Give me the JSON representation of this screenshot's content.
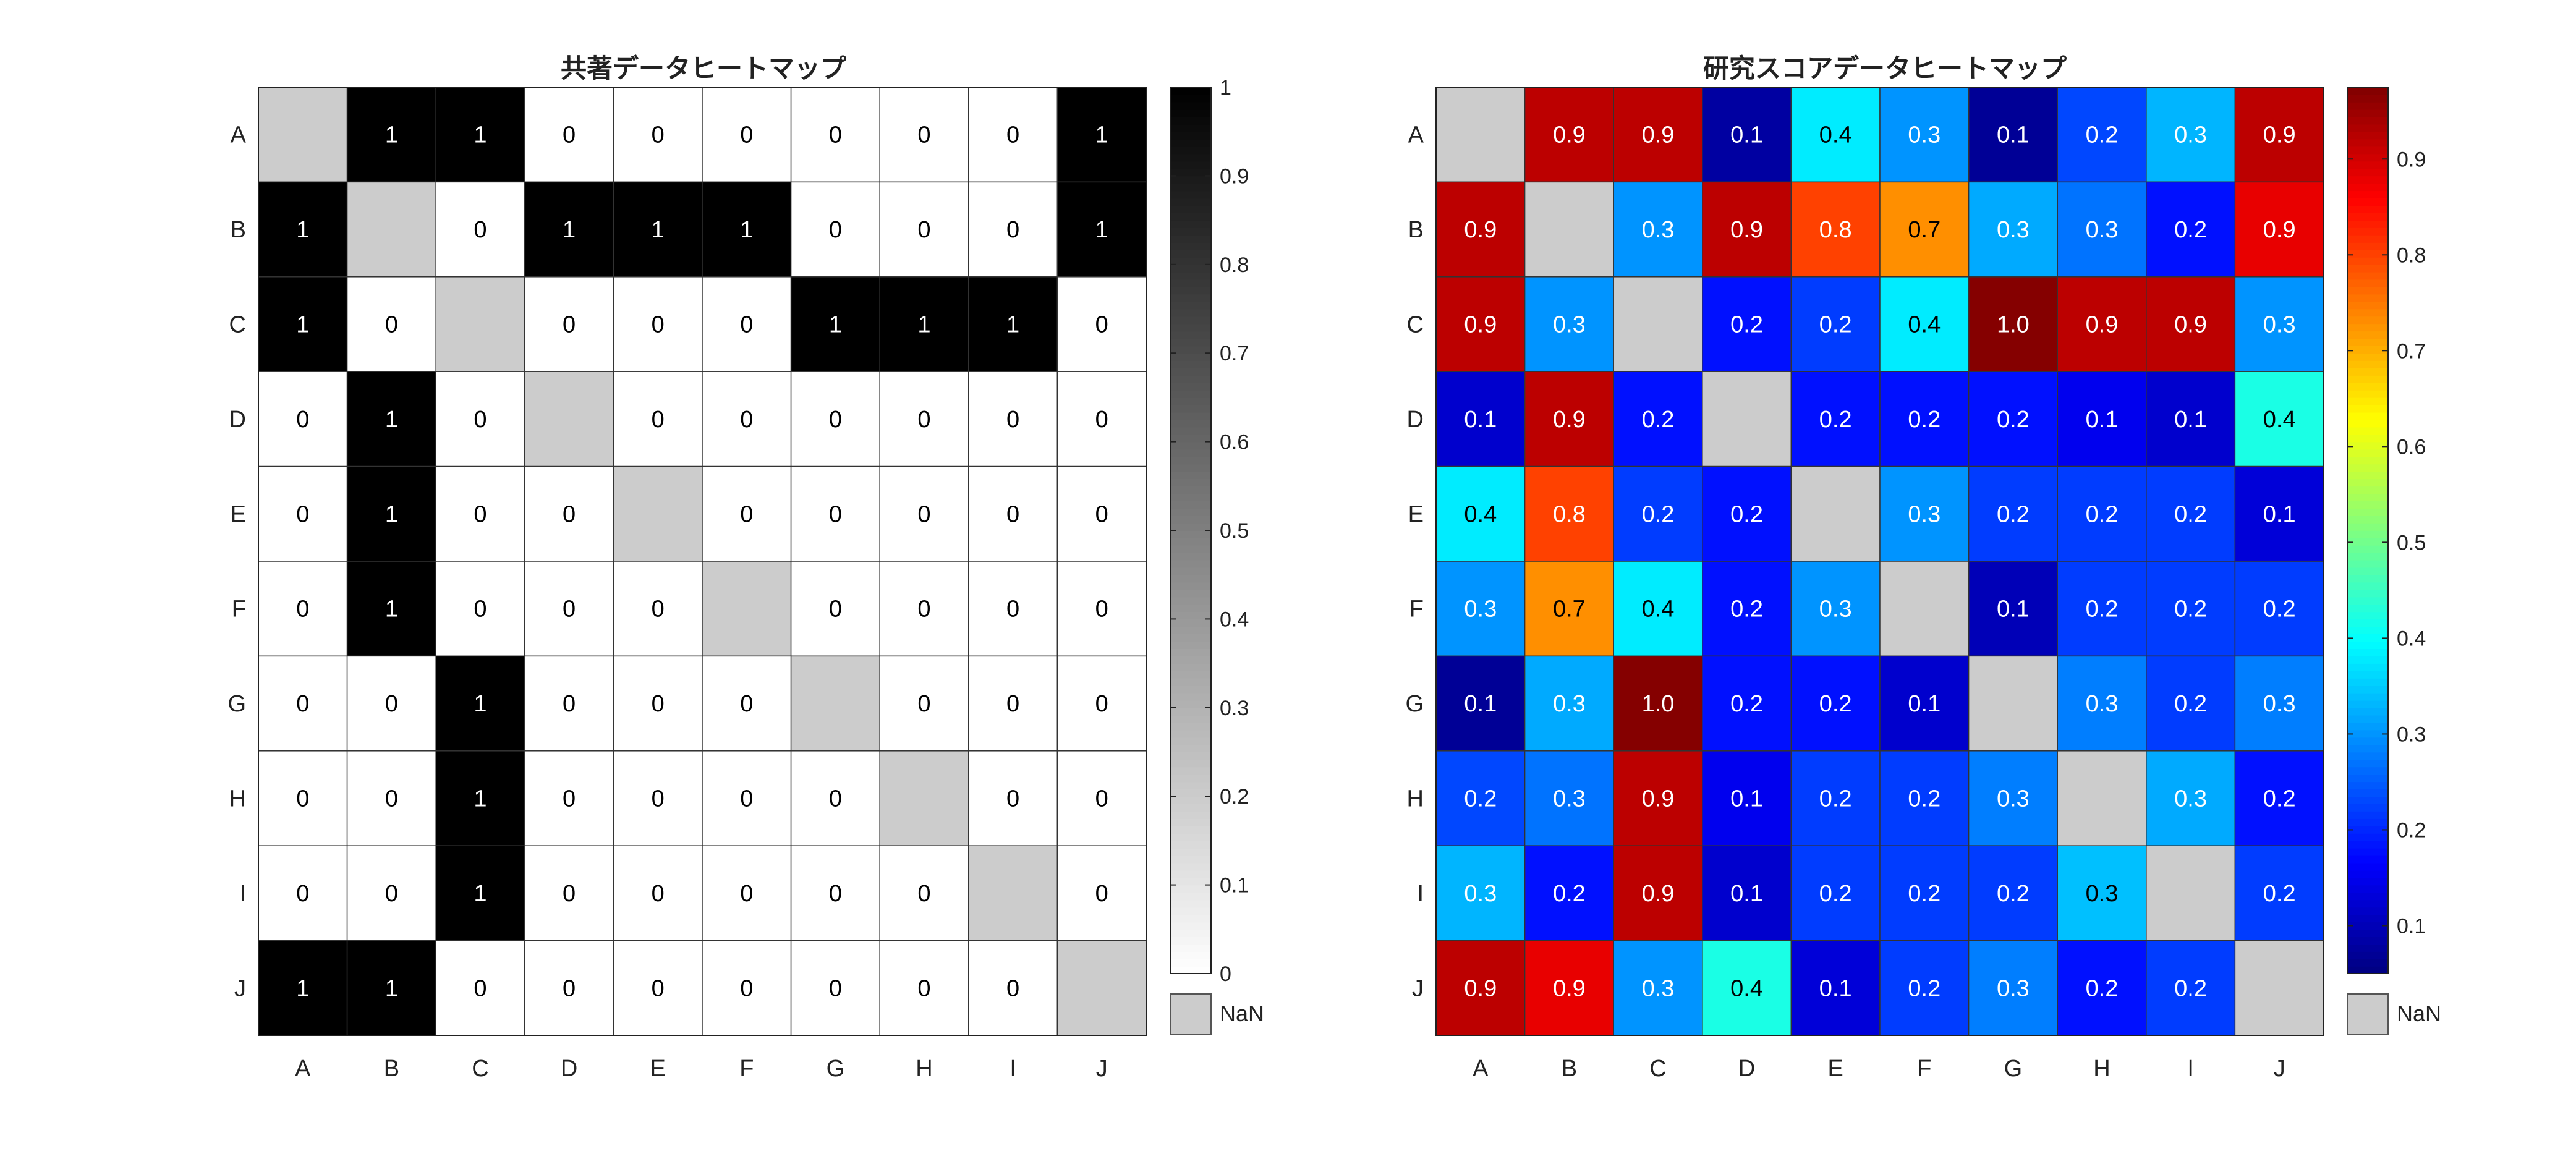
{
  "chart_data": [
    {
      "type": "heatmap",
      "title": "共著データヒートマップ",
      "xlabel": "",
      "ylabel": "",
      "x_categories": [
        "A",
        "B",
        "C",
        "D",
        "E",
        "F",
        "G",
        "H",
        "I",
        "J"
      ],
      "y_categories": [
        "A",
        "B",
        "C",
        "D",
        "E",
        "F",
        "G",
        "H",
        "I",
        "J"
      ],
      "values": [
        [
          null,
          1,
          1,
          0,
          0,
          0,
          0,
          0,
          0,
          1
        ],
        [
          1,
          null,
          0,
          1,
          1,
          1,
          0,
          0,
          0,
          1
        ],
        [
          1,
          0,
          null,
          0,
          0,
          0,
          1,
          1,
          1,
          0
        ],
        [
          0,
          1,
          0,
          null,
          0,
          0,
          0,
          0,
          0,
          0
        ],
        [
          0,
          1,
          0,
          0,
          null,
          0,
          0,
          0,
          0,
          0
        ],
        [
          0,
          1,
          0,
          0,
          0,
          null,
          0,
          0,
          0,
          0
        ],
        [
          0,
          0,
          1,
          0,
          0,
          0,
          null,
          0,
          0,
          0
        ],
        [
          0,
          0,
          1,
          0,
          0,
          0,
          0,
          null,
          0,
          0
        ],
        [
          0,
          0,
          1,
          0,
          0,
          0,
          0,
          0,
          null,
          0
        ],
        [
          1,
          1,
          0,
          0,
          0,
          0,
          0,
          0,
          0,
          null
        ]
      ],
      "cell_labels": [
        [
          "",
          "1",
          "1",
          "0",
          "0",
          "0",
          "0",
          "0",
          "0",
          "1"
        ],
        [
          "1",
          "",
          "0",
          "1",
          "1",
          "1",
          "0",
          "0",
          "0",
          "1"
        ],
        [
          "1",
          "0",
          "",
          "0",
          "0",
          "0",
          "1",
          "1",
          "1",
          "0"
        ],
        [
          "0",
          "1",
          "0",
          "",
          "0",
          "0",
          "0",
          "0",
          "0",
          "0"
        ],
        [
          "0",
          "1",
          "0",
          "0",
          "",
          "0",
          "0",
          "0",
          "0",
          "0"
        ],
        [
          "0",
          "1",
          "0",
          "0",
          "0",
          "",
          "0",
          "0",
          "0",
          "0"
        ],
        [
          "0",
          "0",
          "1",
          "0",
          "0",
          "0",
          "",
          "0",
          "0",
          "0"
        ],
        [
          "0",
          "0",
          "1",
          "0",
          "0",
          "0",
          "0",
          "",
          "0",
          "0"
        ],
        [
          "0",
          "0",
          "1",
          "0",
          "0",
          "0",
          "0",
          "0",
          "",
          "0"
        ],
        [
          "1",
          "1",
          "0",
          "0",
          "0",
          "0",
          "0",
          "0",
          "0",
          ""
        ]
      ],
      "colormap": "gray-inverted",
      "clim": [
        0,
        1
      ],
      "colorbar_ticks": [
        0,
        0.1,
        0.2,
        0.3,
        0.4,
        0.5,
        0.6,
        0.7,
        0.8,
        0.9,
        1
      ],
      "colorbar_tick_labels": [
        "0",
        "0.1",
        "0.2",
        "0.3",
        "0.4",
        "0.5",
        "0.6",
        "0.7",
        "0.8",
        "0.9",
        "1"
      ],
      "missing_label": "NaN",
      "missing_color": "#cccccc"
    },
    {
      "type": "heatmap",
      "title": "研究スコアデータヒートマップ",
      "xlabel": "",
      "ylabel": "",
      "x_categories": [
        "A",
        "B",
        "C",
        "D",
        "E",
        "F",
        "G",
        "H",
        "I",
        "J"
      ],
      "y_categories": [
        "A",
        "B",
        "C",
        "D",
        "E",
        "F",
        "G",
        "H",
        "I",
        "J"
      ],
      "values": [
        [
          null,
          0.92,
          0.92,
          0.08,
          0.38,
          0.3,
          0.07,
          0.23,
          0.33,
          0.92
        ],
        [
          0.92,
          null,
          0.3,
          0.92,
          0.8,
          0.73,
          0.32,
          0.27,
          0.18,
          0.88
        ],
        [
          0.92,
          0.3,
          null,
          0.18,
          0.22,
          0.38,
          0.97,
          0.92,
          0.92,
          0.3
        ],
        [
          0.12,
          0.92,
          0.18,
          null,
          0.18,
          0.18,
          0.18,
          0.15,
          0.12,
          0.42
        ],
        [
          0.38,
          0.8,
          0.22,
          0.18,
          null,
          0.3,
          0.22,
          0.22,
          0.22,
          0.13
        ],
        [
          0.3,
          0.73,
          0.38,
          0.18,
          0.3,
          null,
          0.1,
          0.22,
          0.22,
          0.22
        ],
        [
          0.07,
          0.32,
          0.97,
          0.18,
          0.18,
          0.12,
          null,
          0.28,
          0.22,
          0.28
        ],
        [
          0.23,
          0.27,
          0.92,
          0.15,
          0.22,
          0.22,
          0.28,
          null,
          0.32,
          0.18
        ],
        [
          0.33,
          0.18,
          0.92,
          0.12,
          0.22,
          0.22,
          0.22,
          0.34,
          null,
          0.22
        ],
        [
          0.92,
          0.88,
          0.3,
          0.42,
          0.13,
          0.22,
          0.28,
          0.18,
          0.22,
          null
        ]
      ],
      "cell_labels": [
        [
          "",
          "0.9",
          "0.9",
          "0.1",
          "0.4",
          "0.3",
          "0.1",
          "0.2",
          "0.3",
          "0.9"
        ],
        [
          "0.9",
          "",
          "0.3",
          "0.9",
          "0.8",
          "0.7",
          "0.3",
          "0.3",
          "0.2",
          "0.9"
        ],
        [
          "0.9",
          "0.3",
          "",
          "0.2",
          "0.2",
          "0.4",
          "1.0",
          "0.9",
          "0.9",
          "0.3"
        ],
        [
          "0.1",
          "0.9",
          "0.2",
          "",
          "0.2",
          "0.2",
          "0.2",
          "0.1",
          "0.1",
          "0.4"
        ],
        [
          "0.4",
          "0.8",
          "0.2",
          "0.2",
          "",
          "0.3",
          "0.2",
          "0.2",
          "0.2",
          "0.1"
        ],
        [
          "0.3",
          "0.7",
          "0.4",
          "0.2",
          "0.3",
          "",
          "0.1",
          "0.2",
          "0.2",
          "0.2"
        ],
        [
          "0.1",
          "0.3",
          "1.0",
          "0.2",
          "0.2",
          "0.1",
          "",
          "0.3",
          "0.2",
          "0.3"
        ],
        [
          "0.2",
          "0.3",
          "0.9",
          "0.1",
          "0.2",
          "0.2",
          "0.3",
          "",
          "0.3",
          "0.2"
        ],
        [
          "0.3",
          "0.2",
          "0.9",
          "0.1",
          "0.2",
          "0.2",
          "0.2",
          "0.3",
          "",
          "0.2"
        ],
        [
          "0.9",
          "0.9",
          "0.3",
          "0.4",
          "0.1",
          "0.2",
          "0.3",
          "0.2",
          "0.2",
          ""
        ]
      ],
      "colormap": "jet",
      "clim": [
        0.05,
        0.975
      ],
      "colorbar_ticks": [
        0.1,
        0.2,
        0.3,
        0.4,
        0.5,
        0.6,
        0.7,
        0.8,
        0.9
      ],
      "colorbar_tick_labels": [
        "0.1",
        "0.2",
        "0.3",
        "0.4",
        "0.5",
        "0.6",
        "0.7",
        "0.8",
        "0.9"
      ],
      "missing_label": "NaN",
      "missing_color": "#cccccc"
    }
  ]
}
